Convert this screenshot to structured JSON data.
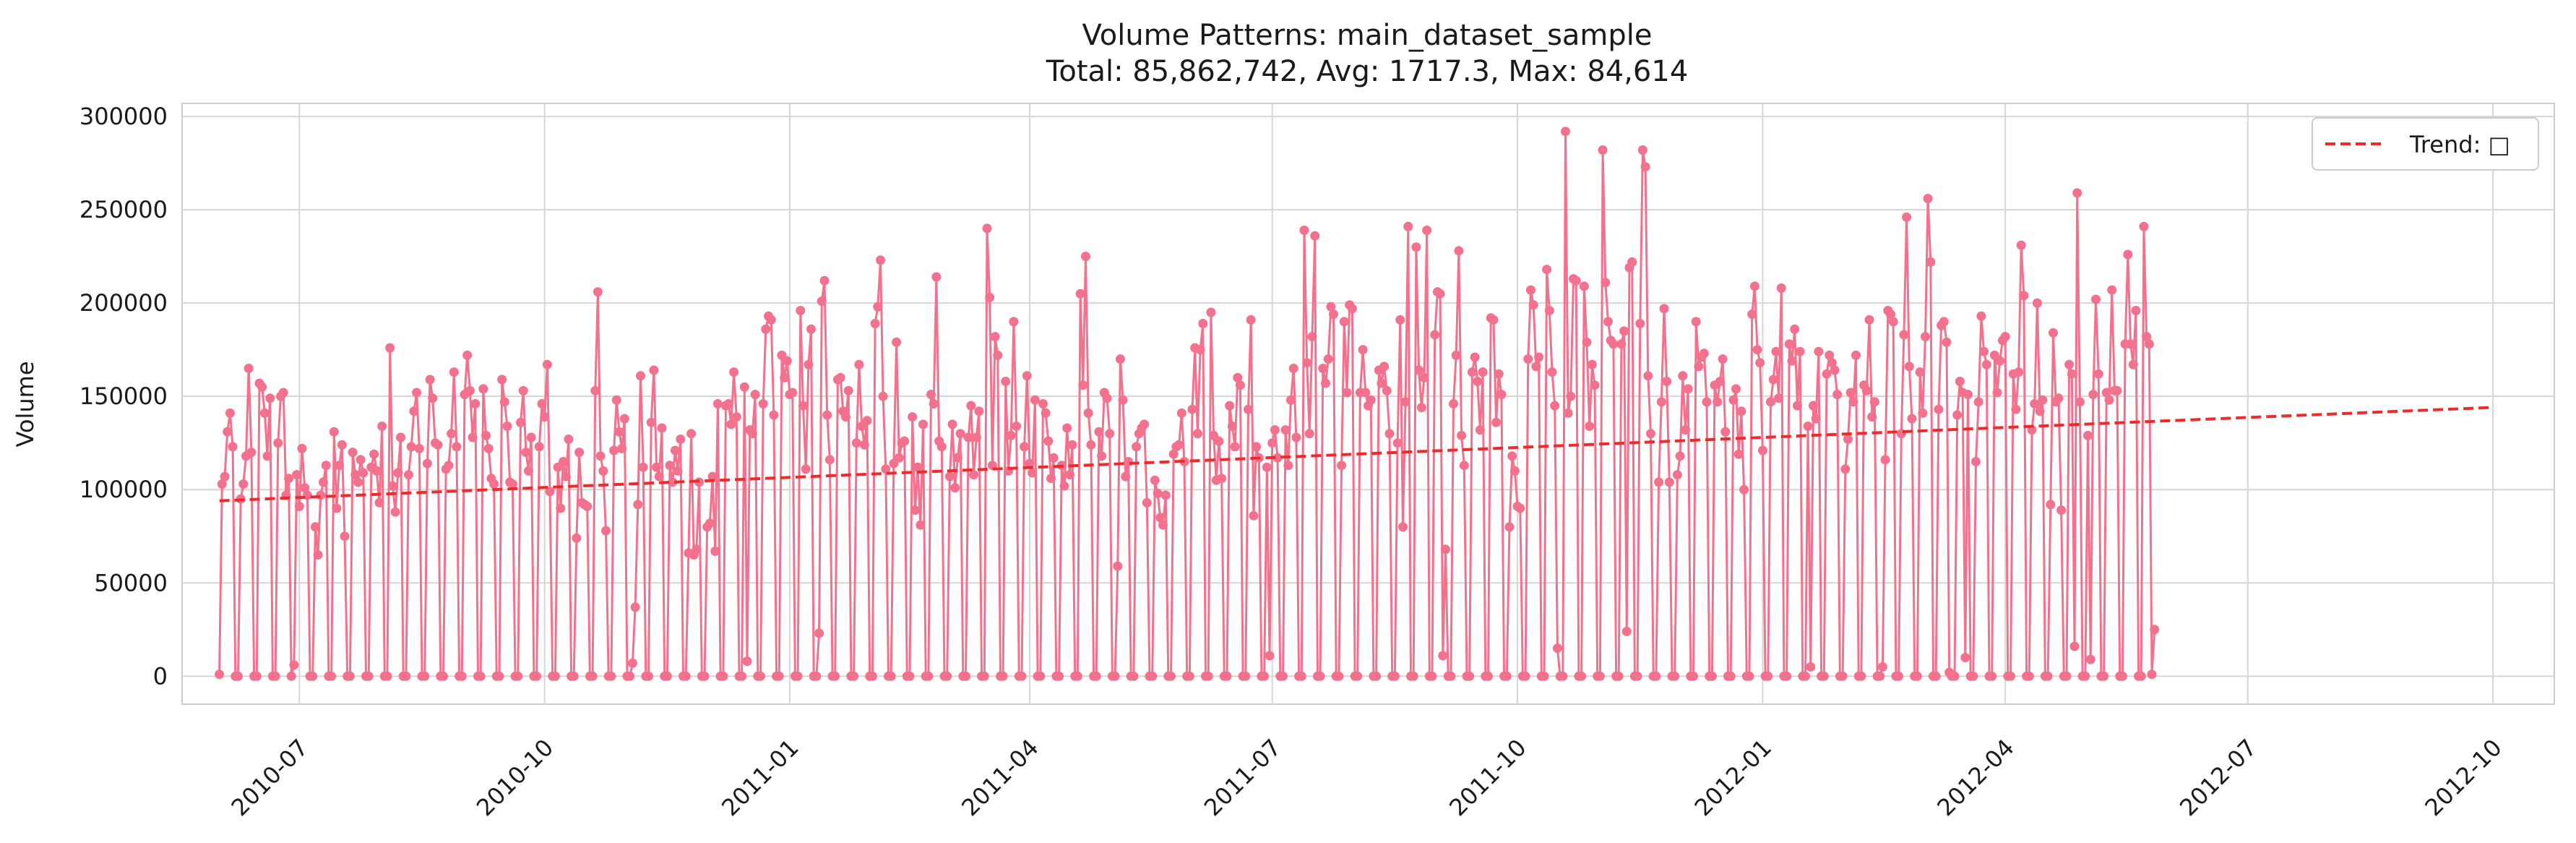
{
  "chart_data": {
    "type": "line",
    "title": "Volume Patterns: main_dataset_sample",
    "subtitle": "Total: 85,862,742, Avg: 1717.3, Max: 84,614",
    "ylabel": "Volume",
    "xlabel": "",
    "ylim": [
      -15000,
      307000
    ],
    "xlim": [
      "2010-05-18",
      "2012-10-24"
    ],
    "yticks": [
      0,
      50000,
      100000,
      150000,
      200000,
      250000,
      300000
    ],
    "xticks": [
      "2010-07",
      "2010-10",
      "2011-01",
      "2011-04",
      "2011-07",
      "2011-10",
      "2012-01",
      "2012-04",
      "2012-07",
      "2012-10"
    ],
    "grid": true,
    "legend": {
      "placement": "top-right",
      "entries": [
        "Trend: □"
      ]
    },
    "x_start": "2010-06-01",
    "x_end": "2012-09-30",
    "weekday_series_pattern": {
      "zero_days_per_cycle": 2,
      "active_days_per_cycle": 5,
      "note": "Daily series alternates 5 active days with 2 near-zero days"
    },
    "series": [
      {
        "name": "Volume",
        "color": "#f4718d",
        "values": [
          1000,
          103000,
          107000,
          131000,
          141000,
          123000,
          0,
          0,
          95000,
          103000,
          118000,
          165000,
          120000,
          0,
          0,
          157000,
          155000,
          141000,
          118000,
          149000,
          0,
          0,
          125000,
          150000,
          152000,
          97000,
          106000,
          0,
          6000,
          108000,
          91000,
          122000,
          101000,
          97000,
          0,
          0,
          80000,
          65000,
          97000,
          104000,
          113000,
          0,
          0,
          131000,
          90000,
          113000,
          124000,
          75000,
          0,
          0,
          120000,
          108000,
          104000,
          116000,
          109000,
          0,
          0,
          112000,
          119000,
          110000,
          93000,
          134000,
          0,
          0,
          176000,
          102000,
          88000,
          109000,
          128000,
          0,
          0,
          108000,
          123000,
          142000,
          152000,
          122000,
          0,
          0,
          114000,
          159000,
          149000,
          125000,
          124000,
          0,
          0,
          111000,
          113000,
          130000,
          163000,
          123000,
          0,
          0,
          151000,
          172000,
          153000,
          128000,
          146000,
          0,
          0,
          154000,
          129000,
          122000,
          106000,
          103000,
          0,
          0,
          159000,
          147000,
          134000,
          104000,
          103000,
          0,
          0,
          136000,
          153000,
          120000,
          110000,
          128000,
          0,
          0,
          123000,
          146000,
          139000,
          167000,
          99000,
          0,
          0,
          112000,
          90000,
          115000,
          107000,
          127000,
          0,
          0,
          74000,
          120000,
          93000,
          92000,
          91000,
          0,
          0,
          153000,
          206000,
          118000,
          110000,
          78000,
          0,
          0,
          121000,
          148000,
          131000,
          122000,
          138000,
          0,
          0,
          7000,
          37000,
          92000,
          161000,
          112000,
          0,
          0,
          136000,
          164000,
          112000,
          107000,
          133000,
          0,
          0,
          113000,
          104000,
          121000,
          110000,
          127000,
          0,
          0,
          66000,
          130000,
          65000,
          68000,
          104000,
          0,
          0,
          80000,
          82000,
          107000,
          67000,
          146000,
          0,
          0,
          145000,
          146000,
          135000,
          163000,
          139000,
          0,
          0,
          155000,
          8000,
          132000,
          130000,
          151000,
          0,
          0,
          146000,
          186000,
          193000,
          191000,
          140000,
          0,
          0,
          172000,
          160000,
          169000,
          151000,
          152000,
          0,
          0,
          196000,
          145000,
          111000,
          167000,
          186000,
          0,
          0,
          23000,
          201000,
          212000,
          140000,
          116000,
          0,
          0,
          159000,
          160000,
          142000,
          139000,
          153000,
          0,
          0,
          125000,
          167000,
          134000,
          124000,
          137000,
          0,
          0,
          189000,
          198000,
          223000,
          150000,
          111000,
          0,
          0,
          114000,
          179000,
          117000,
          125000,
          126000,
          0,
          0,
          139000,
          89000,
          112000,
          81000,
          135000,
          0,
          0,
          151000,
          146000,
          214000,
          126000,
          123000,
          0,
          0,
          107000,
          135000,
          101000,
          117000,
          130000,
          0,
          0,
          128000,
          145000,
          108000,
          128000,
          142000,
          0,
          0,
          240000,
          203000,
          113000,
          182000,
          172000,
          0,
          0,
          158000,
          110000,
          129000,
          190000,
          134000,
          0,
          0,
          123000,
          161000,
          114000,
          109000,
          148000,
          0,
          0,
          146000,
          141000,
          126000,
          106000,
          117000,
          0,
          0,
          113000,
          102000,
          133000,
          108000,
          124000,
          0,
          0,
          205000,
          156000,
          225000,
          141000,
          124000,
          0,
          0,
          131000,
          118000,
          152000,
          149000,
          130000,
          0,
          0,
          59000,
          170000,
          148000,
          107000,
          115000,
          0,
          0,
          123000,
          130000,
          133000,
          135000,
          93000,
          0,
          0,
          105000,
          98000,
          85000,
          81000,
          97000,
          0,
          0,
          119000,
          123000,
          124000,
          141000,
          115000,
          0,
          0,
          143000,
          176000,
          130000,
          175000,
          189000,
          0,
          0,
          195000,
          129000,
          105000,
          126000,
          106000,
          0,
          0,
          145000,
          134000,
          123000,
          160000,
          156000,
          0,
          0,
          143000,
          191000,
          86000,
          123000,
          117000,
          0,
          0,
          112000,
          11000,
          125000,
          132000,
          117000,
          0,
          0,
          132000,
          113000,
          148000,
          165000,
          128000,
          0,
          0,
          239000,
          168000,
          130000,
          182000,
          236000,
          0,
          0,
          165000,
          157000,
          170000,
          198000,
          194000,
          0,
          0,
          113000,
          190000,
          152000,
          199000,
          197000,
          0,
          0,
          152000,
          175000,
          152000,
          145000,
          148000,
          0,
          0,
          164000,
          157000,
          166000,
          153000,
          130000,
          0,
          0,
          125000,
          191000,
          80000,
          147000,
          241000,
          0,
          0,
          230000,
          164000,
          144000,
          160000,
          239000,
          0,
          0,
          183000,
          206000,
          205000,
          11000,
          68000,
          0,
          0,
          146000,
          172000,
          228000,
          129000,
          113000,
          0,
          0,
          163000,
          171000,
          158000,
          132000,
          163000,
          0,
          0,
          192000,
          191000,
          136000,
          162000,
          151000,
          0,
          0,
          80000,
          118000,
          110000,
          91000,
          90000,
          0,
          0,
          170000,
          207000,
          199000,
          166000,
          171000,
          0,
          0,
          218000,
          196000,
          163000,
          145000,
          15000,
          0,
          0,
          292000,
          141000,
          150000,
          213000,
          212000,
          0,
          0,
          209000,
          179000,
          134000,
          167000,
          156000,
          0,
          0,
          282000,
          211000,
          190000,
          180000,
          178000,
          0,
          0,
          178000,
          185000,
          24000,
          219000,
          222000,
          0,
          0,
          189000,
          282000,
          273000,
          161000,
          130000,
          0,
          0,
          104000,
          147000,
          197000,
          158000,
          104000,
          0,
          0,
          108000,
          118000,
          161000,
          132000,
          154000,
          0,
          0,
          190000,
          166000,
          171000,
          173000,
          147000,
          0,
          0,
          156000,
          147000,
          158000,
          170000,
          131000,
          0,
          0,
          148000,
          154000,
          119000,
          142000,
          100000,
          0,
          0,
          194000,
          209000,
          175000,
          168000,
          121000,
          0,
          0,
          147000,
          159000,
          174000,
          149000,
          208000,
          0,
          0,
          178000,
          169000,
          186000,
          145000,
          174000,
          0,
          0,
          134000,
          5000,
          145000,
          138000,
          174000,
          0,
          0,
          162000,
          172000,
          168000,
          164000,
          151000,
          0,
          0,
          111000,
          127000,
          152000,
          147000,
          172000,
          0,
          0,
          156000,
          153000,
          191000,
          139000,
          147000,
          0,
          0,
          5000,
          116000,
          196000,
          194000,
          190000,
          0,
          0,
          130000,
          183000,
          246000,
          166000,
          138000,
          0,
          0,
          163000,
          141000,
          182000,
          256000,
          222000,
          0,
          0,
          143000,
          188000,
          190000,
          179000,
          2000,
          0,
          0,
          140000,
          158000,
          152000,
          10000,
          151000,
          0,
          0,
          115000,
          147000,
          193000,
          174000,
          167000,
          0,
          0,
          172000,
          152000,
          169000,
          180000,
          182000,
          0,
          0,
          162000,
          143000,
          163000,
          231000,
          204000,
          0,
          0,
          132000,
          146000,
          200000,
          142000,
          148000,
          0,
          0,
          92000,
          184000,
          147000,
          149000,
          89000,
          0,
          0,
          167000,
          162000,
          16000,
          259000,
          147000,
          0,
          0,
          129000,
          9000,
          151000,
          202000,
          162000,
          0,
          0,
          152000,
          148000,
          207000,
          153000,
          153000,
          0,
          0,
          178000,
          226000,
          178000,
          167000,
          196000,
          0,
          0,
          241000,
          182000,
          178000,
          1000,
          25000
        ]
      },
      {
        "name": "Trend: □",
        "color": "#ee2a2a",
        "style": "dashed",
        "x": [
          "2010-06-01",
          "2012-09-30"
        ],
        "values": [
          94000,
          144000
        ]
      }
    ]
  }
}
